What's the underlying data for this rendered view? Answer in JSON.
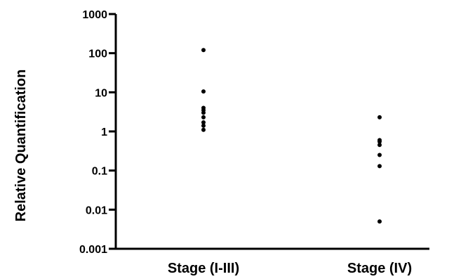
{
  "chart_data": {
    "type": "scatter",
    "title": "",
    "xlabel": "",
    "ylabel": "Relative Quantification",
    "yscale": "log",
    "ylim": [
      0.001,
      1000
    ],
    "y_ticks": [
      {
        "value": 0.001,
        "label": "0.001"
      },
      {
        "value": 0.01,
        "label": "0.01"
      },
      {
        "value": 0.1,
        "label": "0.1"
      },
      {
        "value": 1,
        "label": "1"
      },
      {
        "value": 10,
        "label": "10"
      },
      {
        "value": 100,
        "label": "100"
      },
      {
        "value": 1000,
        "label": "1000"
      }
    ],
    "categories": [
      "Stage (I-III)",
      "Stage (IV)"
    ],
    "grid": false,
    "series": [
      {
        "category": "Stage (I-III)",
        "values": [
          120,
          10.5,
          4.0,
          3.5,
          3.0,
          2.3,
          1.7,
          1.4,
          1.1
        ]
      },
      {
        "category": "Stage (IV)",
        "values": [
          2.3,
          0.6,
          0.55,
          0.45,
          0.25,
          0.13,
          0.005
        ]
      }
    ],
    "point_color": "#000000"
  }
}
